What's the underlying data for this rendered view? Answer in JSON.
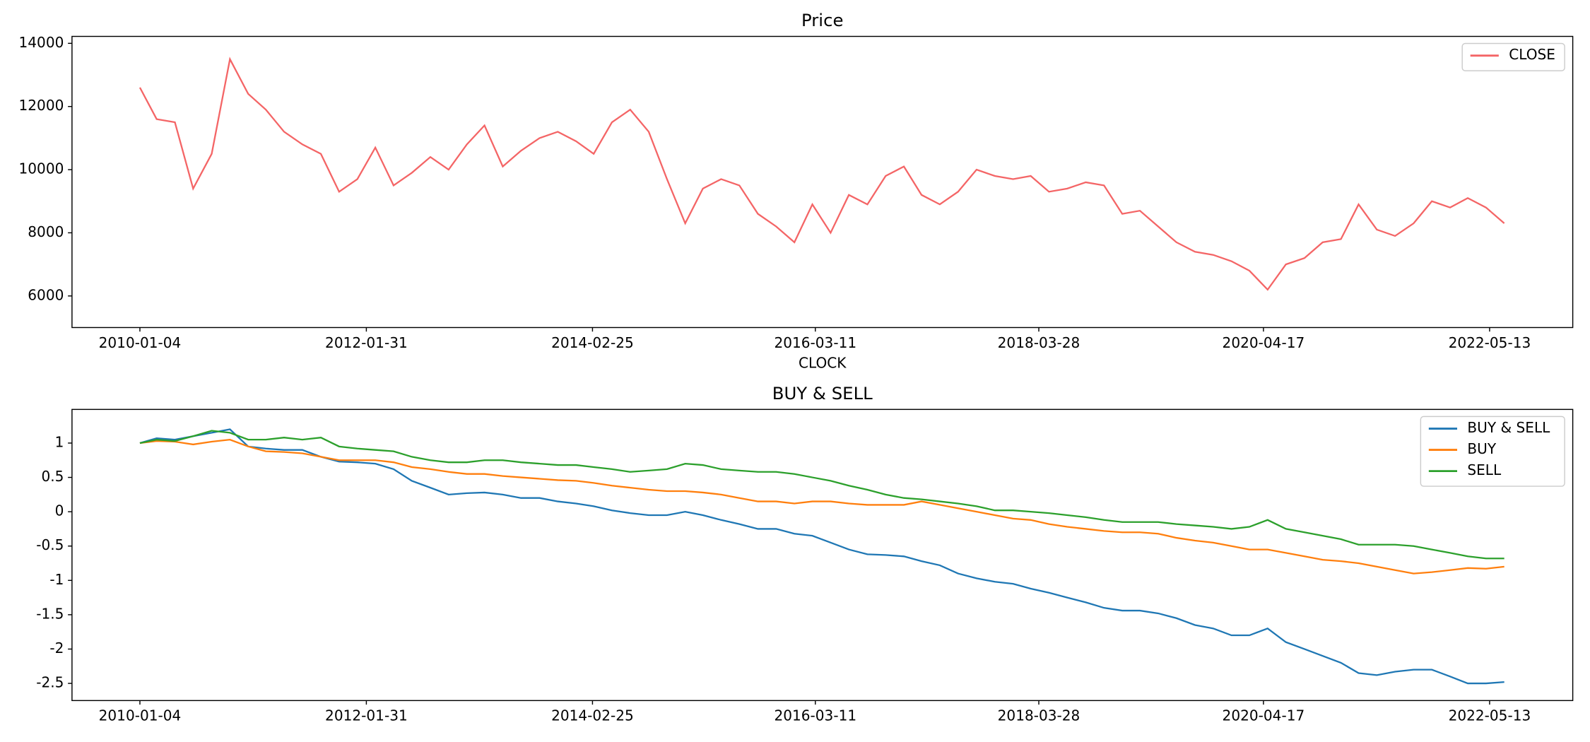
{
  "chart_data": [
    {
      "type": "line",
      "title": "Price",
      "x_label": "CLOCK",
      "x": [
        "2010-01-04",
        "2010-03-01",
        "2010-05-01",
        "2010-07-01",
        "2010-09-01",
        "2010-11-01",
        "2011-01-01",
        "2011-03-01",
        "2011-05-01",
        "2011-07-01",
        "2011-09-01",
        "2011-11-01",
        "2012-01-01",
        "2012-03-01",
        "2012-05-01",
        "2012-07-01",
        "2012-09-01",
        "2012-11-01",
        "2013-01-01",
        "2013-03-01",
        "2013-05-01",
        "2013-07-01",
        "2013-09-01",
        "2013-11-01",
        "2014-01-01",
        "2014-03-01",
        "2014-05-01",
        "2014-07-01",
        "2014-09-01",
        "2014-11-01",
        "2015-01-01",
        "2015-03-01",
        "2015-05-01",
        "2015-07-01",
        "2015-09-01",
        "2015-11-01",
        "2016-01-01",
        "2016-03-01",
        "2016-05-01",
        "2016-07-01",
        "2016-09-01",
        "2016-11-01",
        "2017-01-01",
        "2017-03-01",
        "2017-05-01",
        "2017-07-01",
        "2017-09-01",
        "2017-11-01",
        "2018-01-01",
        "2018-03-01",
        "2018-05-01",
        "2018-07-01",
        "2018-09-01",
        "2018-11-01",
        "2019-01-01",
        "2019-03-01",
        "2019-05-01",
        "2019-07-01",
        "2019-09-01",
        "2019-11-01",
        "2020-01-01",
        "2020-03-01",
        "2020-05-01",
        "2020-07-01",
        "2020-09-01",
        "2020-11-01",
        "2021-01-01",
        "2021-03-01",
        "2021-05-01",
        "2021-07-01",
        "2021-09-01",
        "2021-11-01",
        "2022-01-01",
        "2022-03-01",
        "2022-05-01",
        "2022-07-01"
      ],
      "series": [
        {
          "name": "CLOSE",
          "color": "#f46566",
          "values": [
            12600,
            11600,
            11500,
            9400,
            10500,
            13500,
            12400,
            11900,
            11200,
            10800,
            10500,
            9300,
            9700,
            10700,
            9500,
            9900,
            10400,
            10000,
            10800,
            11400,
            10100,
            10600,
            11000,
            11200,
            10900,
            10500,
            11500,
            11900,
            11200,
            9700,
            8300,
            9400,
            9700,
            9500,
            8600,
            8200,
            7700,
            8900,
            8000,
            9200,
            8900,
            9800,
            10100,
            9200,
            8900,
            9300,
            10000,
            9800,
            9700,
            9800,
            9300,
            9400,
            9600,
            9500,
            8600,
            8700,
            8200,
            7700,
            7400,
            7300,
            7100,
            6800,
            6200,
            7000,
            7200,
            7700,
            7800,
            8900,
            8100,
            7900,
            8300,
            9000,
            8800,
            9100,
            8800,
            8300
          ]
        }
      ],
      "xlim": [
        "2009-05-22",
        "2023-02-15"
      ],
      "xticks": [
        "2010-01-04",
        "2012-01-31",
        "2014-02-25",
        "2016-03-11",
        "2018-03-28",
        "2020-04-17",
        "2022-05-13"
      ],
      "ylim": [
        5000,
        14220
      ],
      "yticks": [
        6000,
        8000,
        10000,
        12000,
        14000
      ],
      "legend": "upper right"
    },
    {
      "type": "line",
      "title": "BUY & SELL",
      "x": [
        "2010-01-04",
        "2010-03-01",
        "2010-05-01",
        "2010-07-01",
        "2010-09-01",
        "2010-11-01",
        "2011-01-01",
        "2011-03-01",
        "2011-05-01",
        "2011-07-01",
        "2011-09-01",
        "2011-11-01",
        "2012-01-01",
        "2012-03-01",
        "2012-05-01",
        "2012-07-01",
        "2012-09-01",
        "2012-11-01",
        "2013-01-01",
        "2013-03-01",
        "2013-05-01",
        "2013-07-01",
        "2013-09-01",
        "2013-11-01",
        "2014-01-01",
        "2014-03-01",
        "2014-05-01",
        "2014-07-01",
        "2014-09-01",
        "2014-11-01",
        "2015-01-01",
        "2015-03-01",
        "2015-05-01",
        "2015-07-01",
        "2015-09-01",
        "2015-11-01",
        "2016-01-01",
        "2016-03-01",
        "2016-05-01",
        "2016-07-01",
        "2016-09-01",
        "2016-11-01",
        "2017-01-01",
        "2017-03-01",
        "2017-05-01",
        "2017-07-01",
        "2017-09-01",
        "2017-11-01",
        "2018-01-01",
        "2018-03-01",
        "2018-05-01",
        "2018-07-01",
        "2018-09-01",
        "2018-11-01",
        "2019-01-01",
        "2019-03-01",
        "2019-05-01",
        "2019-07-01",
        "2019-09-01",
        "2019-11-01",
        "2020-01-01",
        "2020-03-01",
        "2020-05-01",
        "2020-07-01",
        "2020-09-01",
        "2020-11-01",
        "2021-01-01",
        "2021-03-01",
        "2021-05-01",
        "2021-07-01",
        "2021-09-01",
        "2021-11-01",
        "2022-01-01",
        "2022-03-01",
        "2022-05-01",
        "2022-07-01"
      ],
      "series": [
        {
          "name": "BUY & SELL",
          "color": "#1f77b4",
          "values": [
            1.0,
            1.07,
            1.05,
            1.1,
            1.15,
            1.2,
            0.95,
            0.92,
            0.9,
            0.9,
            0.8,
            0.73,
            0.72,
            0.7,
            0.62,
            0.45,
            0.35,
            0.25,
            0.27,
            0.28,
            0.25,
            0.2,
            0.2,
            0.15,
            0.12,
            0.08,
            0.02,
            -0.02,
            -0.05,
            -0.05,
            0.0,
            -0.05,
            -0.12,
            -0.18,
            -0.25,
            -0.25,
            -0.32,
            -0.35,
            -0.45,
            -0.55,
            -0.62,
            -0.63,
            -0.65,
            -0.72,
            -0.78,
            -0.9,
            -0.97,
            -1.02,
            -1.05,
            -1.12,
            -1.18,
            -1.25,
            -1.32,
            -1.4,
            -1.44,
            -1.44,
            -1.48,
            -1.55,
            -1.65,
            -1.7,
            -1.8,
            -1.8,
            -1.7,
            -1.9,
            -2.0,
            -2.1,
            -2.2,
            -2.35,
            -2.38,
            -2.33,
            -2.3,
            -2.3,
            -2.4,
            -2.5,
            -2.5,
            -2.48
          ]
        },
        {
          "name": "BUY",
          "color": "#ff7f0e",
          "values": [
            1.0,
            1.03,
            1.02,
            0.98,
            1.02,
            1.05,
            0.95,
            0.88,
            0.87,
            0.85,
            0.8,
            0.75,
            0.75,
            0.75,
            0.72,
            0.65,
            0.62,
            0.58,
            0.55,
            0.55,
            0.52,
            0.5,
            0.48,
            0.46,
            0.45,
            0.42,
            0.38,
            0.35,
            0.32,
            0.3,
            0.3,
            0.28,
            0.25,
            0.2,
            0.15,
            0.15,
            0.12,
            0.15,
            0.15,
            0.12,
            0.1,
            0.1,
            0.1,
            0.15,
            0.1,
            0.05,
            0.0,
            -0.05,
            -0.1,
            -0.12,
            -0.18,
            -0.22,
            -0.25,
            -0.28,
            -0.3,
            -0.3,
            -0.32,
            -0.38,
            -0.42,
            -0.45,
            -0.5,
            -0.55,
            -0.55,
            -0.6,
            -0.65,
            -0.7,
            -0.72,
            -0.75,
            -0.8,
            -0.85,
            -0.9,
            -0.88,
            -0.85,
            -0.82,
            -0.83,
            -0.8
          ]
        },
        {
          "name": "SELL",
          "color": "#2ca02c",
          "values": [
            1.0,
            1.05,
            1.03,
            1.1,
            1.18,
            1.15,
            1.05,
            1.05,
            1.08,
            1.05,
            1.08,
            0.95,
            0.92,
            0.9,
            0.88,
            0.8,
            0.75,
            0.72,
            0.72,
            0.75,
            0.75,
            0.72,
            0.7,
            0.68,
            0.68,
            0.65,
            0.62,
            0.58,
            0.6,
            0.62,
            0.7,
            0.68,
            0.62,
            0.6,
            0.58,
            0.58,
            0.55,
            0.5,
            0.45,
            0.38,
            0.32,
            0.25,
            0.2,
            0.18,
            0.15,
            0.12,
            0.08,
            0.02,
            0.02,
            0.0,
            -0.02,
            -0.05,
            -0.08,
            -0.12,
            -0.15,
            -0.15,
            -0.15,
            -0.18,
            -0.2,
            -0.22,
            -0.25,
            -0.22,
            -0.12,
            -0.25,
            -0.3,
            -0.35,
            -0.4,
            -0.48,
            -0.48,
            -0.48,
            -0.5,
            -0.55,
            -0.6,
            -0.65,
            -0.68,
            -0.68
          ]
        }
      ],
      "xlim": [
        "2009-05-22",
        "2023-02-15"
      ],
      "xticks": [
        "2010-01-04",
        "2012-01-31",
        "2014-02-25",
        "2016-03-11",
        "2018-03-28",
        "2020-04-17",
        "2022-05-13"
      ],
      "ylim": [
        -2.75,
        1.49
      ],
      "yticks": [
        1.0,
        0.5,
        0.0,
        -0.5,
        -1.0,
        -1.5,
        -2.0,
        -2.5
      ],
      "legend": "upper right"
    }
  ]
}
